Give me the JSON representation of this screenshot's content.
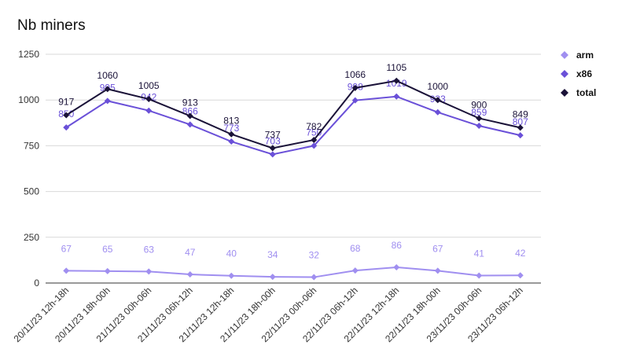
{
  "chart_data": {
    "type": "line",
    "title": "Nb miners",
    "xlabel": "",
    "ylabel": "",
    "ylim": [
      0,
      1250
    ],
    "yticks": [
      0,
      250,
      500,
      750,
      1000,
      1250
    ],
    "grid": true,
    "legend_position": "right",
    "categories": [
      "20/11/23 12h-18h",
      "20/11/23 18h-00h",
      "21/11/23 00h-06h",
      "21/11/23 06h-12h",
      "21/11/23 12h-18h",
      "21/11/23 18h-00h",
      "22/11/23 00h-06h",
      "22/11/23 06h-12h",
      "22/11/23 12h-18h",
      "22/11/23 18h-00h",
      "23/11/23 00h-06h",
      "23/11/23 06h-12h"
    ],
    "series": [
      {
        "name": "arm",
        "color": "#a08ff0",
        "values": [
          67,
          65,
          63,
          47,
          40,
          34,
          32,
          68,
          86,
          67,
          41,
          42
        ]
      },
      {
        "name": "x86",
        "color": "#6a50d8",
        "values": [
          850,
          995,
          942,
          866,
          773,
          703,
          750,
          998,
          1019,
          933,
          859,
          807
        ]
      },
      {
        "name": "total",
        "color": "#1a1238",
        "values": [
          917,
          1060,
          1005,
          913,
          813,
          737,
          782,
          1066,
          1105,
          1000,
          900,
          849
        ]
      }
    ]
  }
}
